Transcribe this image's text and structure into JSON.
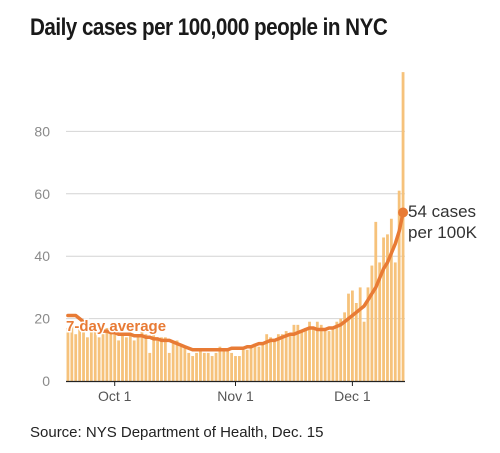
{
  "chart_data": {
    "type": "bar",
    "title": "Daily cases per 100,000 people in NYC",
    "source": "Source: NYS Department of Health, Dec. 15",
    "yticks": [
      0,
      20,
      40,
      60,
      80
    ],
    "ylim": [
      0,
      100
    ],
    "xtick_labels": [
      {
        "label": "Oct 1",
        "day_index": 12
      },
      {
        "label": "Nov 1",
        "day_index": 43
      },
      {
        "label": "Dec 1",
        "day_index": 73
      }
    ],
    "series": [
      {
        "name": "Daily cases",
        "type": "bar",
        "values": [
          17,
          19,
          15,
          18,
          16,
          14,
          18,
          16,
          14,
          15,
          17,
          16,
          15,
          13,
          16,
          14,
          15,
          13,
          15,
          16,
          15,
          9,
          15,
          13,
          14,
          14,
          9,
          12,
          13,
          11,
          11,
          9,
          8,
          9,
          10,
          9,
          9,
          8,
          9,
          11,
          10,
          10,
          9,
          8,
          8,
          10,
          10,
          11,
          12,
          11,
          12,
          15,
          14,
          13,
          15,
          15,
          16,
          15,
          18,
          18,
          16,
          17,
          19,
          17,
          19,
          18,
          17,
          16,
          17,
          19,
          20,
          22,
          28,
          29,
          25,
          30,
          19,
          30,
          37,
          51,
          38,
          46,
          47,
          52,
          38,
          61,
          99
        ]
      },
      {
        "name": "7-day average",
        "type": "line",
        "values": [
          21,
          21,
          21,
          20,
          19,
          18,
          17,
          17,
          16.5,
          16,
          16,
          15.5,
          15.5,
          15,
          15,
          15,
          15,
          14.5,
          14.5,
          14.5,
          14,
          14,
          13.5,
          13.5,
          13,
          13,
          13,
          12.5,
          12,
          11.5,
          11,
          10.5,
          10,
          10,
          10,
          10,
          10,
          10,
          10,
          10,
          10,
          10,
          10.5,
          10.5,
          10.5,
          10.5,
          11,
          11,
          11.5,
          12,
          12,
          12.5,
          13,
          13,
          13.5,
          14,
          14.5,
          15,
          15,
          15.5,
          16,
          16.5,
          17,
          17,
          16.5,
          16.5,
          16.5,
          17,
          17,
          17.5,
          18,
          19,
          20,
          21,
          22,
          23,
          24,
          26,
          28,
          30,
          33,
          36,
          38,
          41,
          44,
          48,
          54
        ]
      }
    ],
    "annotations": {
      "line_label": "7-day average",
      "end_label_1": "54 cases",
      "end_label_2": "per 100K"
    },
    "colors": {
      "bars": "#f6c27b",
      "line": "#e87b35",
      "grid": "#d4d4d4",
      "axis": "#222222"
    }
  }
}
